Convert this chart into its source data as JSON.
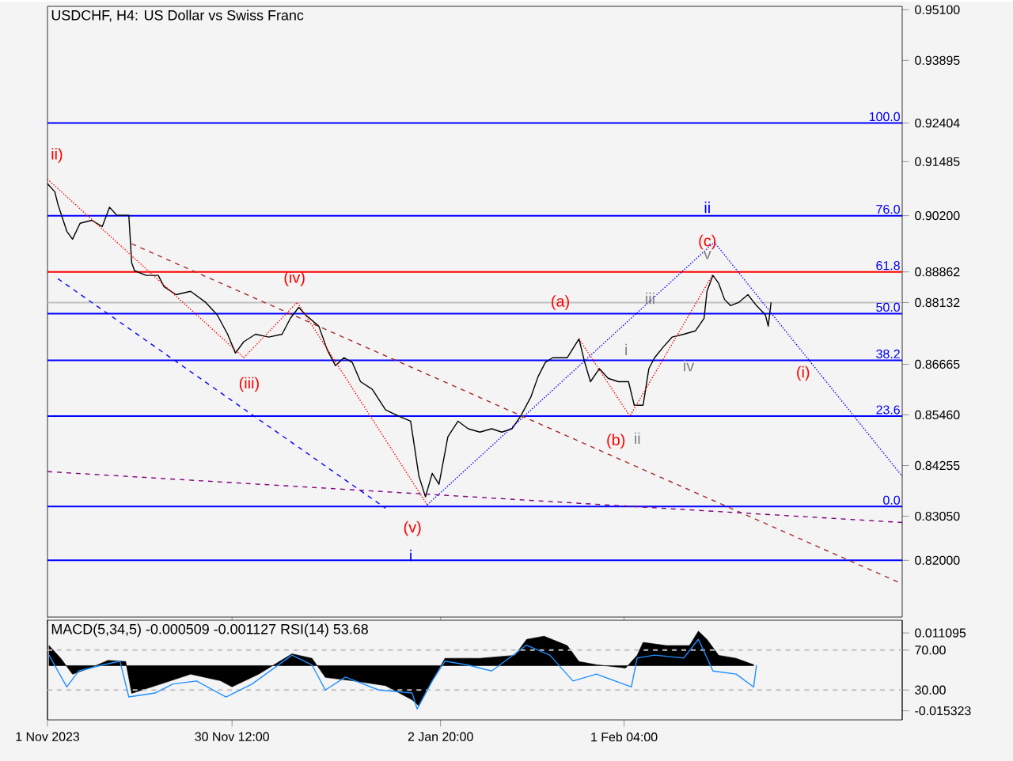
{
  "chart_data": [
    {
      "type": "line",
      "title": "USDCHF, H4:  US Dollar vs Swiss Franc",
      "xlim": [
        "2023-11-01T00:00",
        "2024-03-16T15:00"
      ],
      "ylim": [
        0.8065,
        0.9518
      ],
      "xticks": [
        "2023-11-01T00:00",
        "2023-11-30T12:00",
        "2024-01-02T20:00",
        "2024-02-01T04:00"
      ],
      "yticks": [
        {
          "value": 0.951,
          "label": "0.95100"
        },
        {
          "value": 0.93895,
          "label": "0.93895"
        },
        {
          "value": 0.92404,
          "label": "0.92404"
        },
        {
          "value": 0.91485,
          "label": "0.91485"
        },
        {
          "value": 0.902,
          "label": "0.90200"
        },
        {
          "value": 0.88862,
          "label": "0.88862"
        },
        {
          "value": 0.88132,
          "label": "0.88132"
        },
        {
          "value": 0.86665,
          "label": "0.86665"
        },
        {
          "value": 0.8546,
          "label": "0.85460"
        },
        {
          "value": 0.84255,
          "label": "0.84255"
        },
        {
          "value": 0.8305,
          "label": "0.83050"
        },
        {
          "value": 0.82,
          "label": "0.82000"
        }
      ],
      "tick_labels": "y",
      "series": [
        {
          "color": "#000000",
          "x": [
            "2023-11-01T00:00",
            "2023-11-02T04:00",
            "2023-11-02T16:00",
            "2023-11-04T02:00",
            "2023-11-05T00:00",
            "2023-11-06T05:00",
            "2023-11-08T02:00",
            "2023-11-09T18:00",
            "2023-11-10T22:00",
            "2023-11-12T02:00",
            "2023-11-14T00:00",
            "2023-11-14T11:00",
            "2023-11-14T22:00",
            "2023-11-16T19:00",
            "2023-11-18T17:00",
            "2023-11-19T15:00",
            "2023-11-21T13:00",
            "2023-11-23T21:00",
            "2023-11-26T06:00",
            "2023-11-28T03:00",
            "2023-11-29T19:00",
            "2023-12-01T01:00",
            "2023-12-02T09:00",
            "2023-12-04T06:00",
            "2023-12-06T09:00",
            "2023-12-08T12:00",
            "2023-12-09T20:00",
            "2023-12-11T04:00",
            "2023-12-12T06:00",
            "2023-12-14T09:00",
            "2023-12-15T17:00",
            "2023-12-17T01:00",
            "2023-12-18T09:00",
            "2023-12-19T17:00",
            "2023-12-21T01:00",
            "2023-12-22T22:00",
            "2023-12-25T01:00",
            "2023-12-27T04:00",
            "2023-12-29T01:00",
            "2023-12-30T09:00",
            "2023-12-31T10:00",
            "2024-01-01T12:00",
            "2024-01-02T14:00",
            "2024-01-03T07:00",
            "2024-01-04T00:00",
            "2024-01-05T15:00",
            "2024-01-07T06:00",
            "2024-01-09T03:00",
            "2024-01-11T00:00",
            "2024-01-12T15:00",
            "2024-01-14T06:00",
            "2024-01-15T15:00",
            "2024-01-17T06:00",
            "2024-01-18T10:00",
            "2024-01-19T14:00",
            "2024-01-20T18:00",
            "2024-01-23T02:00",
            "2024-01-24T23:00",
            "2024-01-25T21:00",
            "2024-01-26T19:00",
            "2024-01-28T05:00",
            "2024-01-29T15:00",
            "2024-01-31T06:00",
            "2024-02-01T21:00",
            "2024-02-02T19:00",
            "2024-02-04T05:00",
            "2024-02-05T03:00",
            "2024-02-06T01:00",
            "2024-02-07T11:00",
            "2024-02-08T20:00",
            "2024-02-10T17:00",
            "2024-02-12T14:00",
            "2024-02-13T23:00",
            "2024-02-14T10:00",
            "2024-02-15T09:00",
            "2024-02-16T07:00",
            "2024-02-17T05:00",
            "2024-02-18T04:00",
            "2024-02-19T13:00",
            "2024-02-20T23:00",
            "2024-02-22T08:00",
            "2024-02-23T18:00",
            "2024-02-24T05:00",
            "2024-02-24T16:00"
          ],
          "values": [
            0.9096,
            0.9077,
            0.9047,
            0.8983,
            0.8964,
            0.9002,
            0.9009,
            0.8994,
            0.904,
            0.9021,
            0.9021,
            0.8908,
            0.8889,
            0.8878,
            0.8878,
            0.8851,
            0.8832,
            0.884,
            0.8814,
            0.8784,
            0.8738,
            0.8693,
            0.872,
            0.8738,
            0.8731,
            0.8738,
            0.8776,
            0.8802,
            0.8784,
            0.8757,
            0.8701,
            0.8663,
            0.8682,
            0.8671,
            0.8625,
            0.8607,
            0.8558,
            0.8543,
            0.8531,
            0.84,
            0.8351,
            0.8407,
            0.8381,
            0.8437,
            0.8494,
            0.8531,
            0.8513,
            0.8505,
            0.8513,
            0.8505,
            0.8513,
            0.8543,
            0.8588,
            0.8637,
            0.8671,
            0.8682,
            0.8682,
            0.8727,
            0.8671,
            0.8625,
            0.8656,
            0.8633,
            0.8625,
            0.8625,
            0.8569,
            0.8569,
            0.8656,
            0.8682,
            0.8708,
            0.8731,
            0.8738,
            0.8746,
            0.8776,
            0.884,
            0.8878,
            0.8859,
            0.8821,
            0.8806,
            0.8814,
            0.8832,
            0.8806,
            0.8784,
            0.8757,
            0.8814
          ]
        },
        {
          "color": "#ff0000",
          "line_style": "dotted",
          "x": [
            "2023-11-01T00:00",
            "2023-12-02T09:00",
            "2023-12-10T22:00",
            "2023-12-31T17:00"
          ],
          "values": [
            0.9107,
            0.8682,
            0.8814,
            0.8332
          ]
        },
        {
          "color": "#ff0000",
          "line_style": "dotted",
          "x": [
            "2024-01-24T23:00",
            "2024-02-02T02:00",
            "2024-02-15T09:00"
          ],
          "values": [
            0.8727,
            0.8543,
            0.8881
          ]
        },
        {
          "color": "#0000ff",
          "line_style": "dotted",
          "x": [
            "2023-12-31T17:00",
            "2024-02-15T14:00",
            "2024-03-16T15:00"
          ],
          "values": [
            0.8332,
            0.8957,
            0.84
          ]
        },
        {
          "color": "#a52a2a",
          "line_style": "dashed",
          "x": [
            "2023-11-14T11:00",
            "2024-03-16T15:00"
          ],
          "values": [
            0.8953,
            0.8144
          ]
        },
        {
          "color": "#0000ff",
          "line_style": "dashed",
          "x": [
            "2023-11-02T16:00",
            "2023-12-25T01:00"
          ],
          "values": [
            0.887,
            0.8324
          ]
        },
        {
          "color": "#800080",
          "line_style": "dashed",
          "x": [
            "2023-11-01T00:00",
            "2024-03-16T15:00"
          ],
          "values": [
            0.8411,
            0.829
          ]
        }
      ],
      "ref_lines": [
        {
          "axis": "y",
          "value": 0.92404,
          "color": "#0000ff"
        },
        {
          "axis": "y",
          "value": 0.902,
          "color": "#0000ff"
        },
        {
          "axis": "y",
          "value": 0.88862,
          "color": "#ff0000"
        },
        {
          "axis": "y",
          "value": 0.88132,
          "color": "#c0c0c0"
        },
        {
          "axis": "y",
          "value": 0.8787,
          "color": "#0000ff"
        },
        {
          "axis": "y",
          "value": 0.8676,
          "color": "#0000ff"
        },
        {
          "axis": "y",
          "value": 0.8543,
          "color": "#0000ff"
        },
        {
          "axis": "y",
          "value": 0.8328,
          "color": "#0000ff"
        },
        {
          "axis": "y",
          "value": 0.82,
          "color": "#0000ff"
        }
      ],
      "annotations": [
        "ii)",
        "(iii)",
        "(iv)",
        "(v)",
        "i",
        "(a)",
        "(b)",
        "ii",
        "i",
        "iii",
        "iv",
        "v",
        "(c)",
        "ii",
        "(i)",
        {
          "text": "100.0",
          "x": "2024-03-16T15:00",
          "y": 0.92404
        },
        {
          "text": "76.0",
          "x": "2024-03-16T15:00",
          "y": 0.902
        },
        {
          "text": "61.8",
          "x": "2024-03-16T15:00",
          "y": 0.88862
        },
        {
          "text": "50.0",
          "x": "2024-03-16T15:00",
          "y": 0.8787
        },
        {
          "text": "38.2",
          "x": "2024-03-16T15:00",
          "y": 0.8676
        },
        {
          "text": "23.6",
          "x": "2024-03-16T15:00",
          "y": 0.8543
        },
        {
          "text": "0.0",
          "x": "2024-03-16T15:00",
          "y": 0.8328
        }
      ]
    },
    {
      "type": "line",
      "title": "MACD(5,34,5) -0.000509 -0.001127 RSI(14) 53.68",
      "xlim": [
        "2023-11-01T00:00",
        "2024-03-16T15:00"
      ],
      "ylim": [
        -0.0184,
        0.0154
      ],
      "y2lim": [
        0,
        100
      ],
      "xticks": [
        {
          "value": "2023-11-01T00:00",
          "label": "1 Nov 2023"
        },
        {
          "value": "2023-11-30T12:00",
          "label": "30 Nov 12:00"
        },
        {
          "value": "2024-01-02T20:00",
          "label": "2 Jan 20:00"
        },
        {
          "value": "2024-02-01T04:00",
          "label": "1 Feb 04:00"
        }
      ],
      "yticks": [
        {
          "value": 0.011095,
          "label": "0.011095"
        },
        {
          "value": -0.015323,
          "label": "-0.015323"
        }
      ],
      "y2ticks": [
        {
          "value": 70,
          "label": "70.00"
        },
        {
          "value": 30,
          "label": "30.00"
        }
      ],
      "series": [
        {
          "type": "area",
          "color": "#000000",
          "x": [
            "2023-11-01T06:00",
            "2023-11-03T03:00",
            "2023-11-05T00:00",
            "2023-11-07T20:00",
            "2023-11-10T16:00",
            "2023-11-13T12:00",
            "2023-11-14T11:00",
            "2023-11-19T04:00",
            "2023-11-23T21:00",
            "2023-11-28T15:00",
            "2023-11-30T12:00",
            "2023-12-04T18:00",
            "2023-12-10T02:00",
            "2023-12-13T07:00",
            "2023-12-15T10:00",
            "2023-12-19T17:00",
            "2023-12-25T01:00",
            "2023-12-29T07:00",
            "2023-12-30T09:00",
            "2024-01-01T12:00",
            "2024-01-03T13:00",
            "2024-01-09T03:00",
            "2024-01-14T17:00",
            "2024-01-16T14:00",
            "2024-01-19T09:00",
            "2024-01-23T02:00",
            "2024-01-24T23:00",
            "2024-01-27T18:00",
            "2024-02-01T10:00",
            "2024-02-03T06:00",
            "2024-02-04T05:00",
            "2024-02-07T22:00",
            "2024-02-11T15:00",
            "2024-02-13T01:00",
            "2024-02-14T10:00",
            "2024-02-16T07:00",
            "2024-02-19T02:00",
            "2024-02-21T21:00"
          ],
          "values": [
            0.0068,
            0.0025,
            -0.0029,
            -0.0008,
            0.0018,
            0.0014,
            -0.0094,
            -0.0062,
            -0.0029,
            -0.0051,
            -0.0072,
            -0.0029,
            0.004,
            0.0025,
            -0.004,
            -0.0051,
            -0.0068,
            -0.0116,
            -0.0137,
            -0.0051,
            0.0025,
            0.0025,
            0.0035,
            0.0089,
            0.01,
            0.0068,
            0.0014,
            0.0003,
            -0.0008,
            0.0035,
            0.0079,
            0.0068,
            0.0068,
            0.0117,
            0.0089,
            0.0035,
            0.0025,
            0.0003
          ]
        },
        {
          "type": "line",
          "axis": "y2",
          "color": "#1e90ff",
          "x": [
            "2023-11-01T06:00",
            "2023-11-04T02:00",
            "2023-11-05T23:00",
            "2023-11-09T18:00",
            "2023-11-12T14:00",
            "2023-11-14T00:00",
            "2023-11-18T05:00",
            "2023-11-21T01:00",
            "2023-11-24T20:00",
            "2023-11-29T13:00",
            "2023-12-03T17:00",
            "2023-12-10T02:00",
            "2023-12-13T07:00",
            "2023-12-15T10:00",
            "2023-12-18T15:00",
            "2023-12-23T23:00",
            "2023-12-29T07:00",
            "2023-12-30T02:00",
            "2024-01-01T12:00",
            "2024-01-03T13:00",
            "2024-01-07T06:00",
            "2024-01-11T00:00",
            "2024-01-16T14:00",
            "2024-01-20T07:00",
            "2024-01-24T00:00",
            "2024-01-27T18:00",
            "2024-02-02T08:00",
            "2024-02-03T06:00",
            "2024-02-06T01:00",
            "2024-02-10T17:00",
            "2024-02-13T01:00",
            "2024-02-15T09:00",
            "2024-02-19T02:00",
            "2024-02-21T21:00",
            "2024-02-22T08:00"
          ],
          "values": [
            65,
            33,
            49,
            55,
            59,
            23,
            27,
            36,
            39,
            23,
            36,
            65,
            55,
            30,
            43,
            30,
            27,
            11,
            39,
            59,
            55,
            49,
            75,
            65,
            39,
            46,
            33,
            62,
            65,
            62,
            81,
            49,
            46,
            33,
            55
          ]
        }
      ],
      "ref_lines": [
        {
          "axis": "y2",
          "value": 70,
          "color": "#c0c0c0",
          "line_style": "dashed"
        },
        {
          "axis": "y2",
          "value": 30,
          "color": "#c0c0c0",
          "line_style": "dashed"
        }
      ]
    }
  ]
}
